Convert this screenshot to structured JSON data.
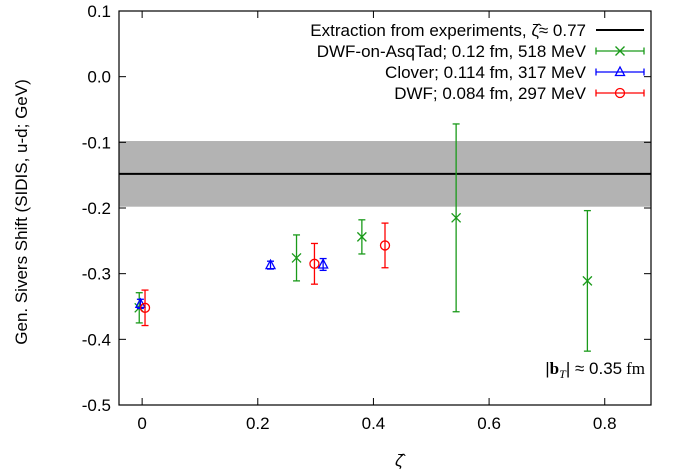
{
  "chart_data": {
    "type": "scatter",
    "xlabel": "ζ̂",
    "ylabel": "Gen. Sivers Shift (SIDIS, u-d; GeV)",
    "xlim": [
      -0.04,
      0.88
    ],
    "ylim": [
      -0.5,
      0.1
    ],
    "xticks": [
      0,
      0.2,
      0.4,
      0.6,
      0.8
    ],
    "xtick_labels": [
      "0",
      "0.2",
      "0.4",
      "0.6",
      "0.8"
    ],
    "yticks": [
      0.1,
      0.0,
      -0.1,
      -0.2,
      -0.3,
      -0.4,
      -0.5
    ],
    "ytick_labels": [
      "0.1",
      "0.0",
      "-0.1",
      "-0.2",
      "-0.3",
      "-0.4",
      "-0.5"
    ],
    "grid": false,
    "legend_position": "top-right",
    "band": {
      "name": "Extraction from experiments, ζ̂≈ 0.77",
      "color": "#000000",
      "band_color": "#b3b3b3",
      "center": -0.148,
      "lower": -0.198,
      "upper": -0.098
    },
    "series": [
      {
        "name": "DWF-on-AsqTad; 0.12 fm, 518 MeV",
        "color": "#1a9a1a",
        "marker": "x",
        "points": [
          {
            "x": -0.005,
            "y": -0.352,
            "yerr": 0.023
          },
          {
            "x": 0.267,
            "y": -0.276,
            "yerr": 0.035
          },
          {
            "x": 0.38,
            "y": -0.244,
            "yerr": 0.026
          },
          {
            "x": 0.543,
            "y": -0.215,
            "yerr": 0.143
          },
          {
            "x": 0.77,
            "y": -0.311,
            "yerr": 0.107
          }
        ]
      },
      {
        "name": "Clover; 0.114 fm, 317 MeV",
        "color": "#0000ff",
        "marker": "triangle",
        "points": [
          {
            "x": -0.003,
            "y": -0.346,
            "yerr": 0.007
          },
          {
            "x": 0.222,
            "y": -0.287,
            "yerr": 0.006
          },
          {
            "x": 0.313,
            "y": -0.286,
            "yerr": 0.009
          }
        ]
      },
      {
        "name": "DWF; 0.084 fm, 297 MeV",
        "color": "#ff0000",
        "marker": "circle",
        "points": [
          {
            "x": 0.005,
            "y": -0.352,
            "yerr": 0.027
          },
          {
            "x": 0.298,
            "y": -0.285,
            "yerr": 0.031
          },
          {
            "x": 0.42,
            "y": -0.257,
            "yerr": 0.034
          }
        ]
      }
    ],
    "annotation": {
      "prefix": "|",
      "vector": "b",
      "sub": "T",
      "suffix": "| ≈ 0.35",
      "unit": "fm"
    }
  }
}
